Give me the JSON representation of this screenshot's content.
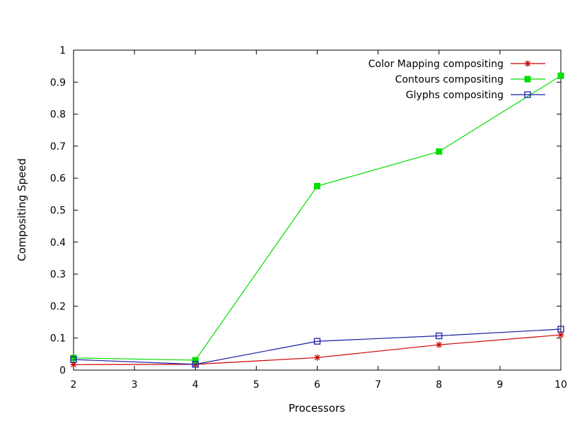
{
  "chart_data": {
    "type": "line",
    "title": "",
    "xlabel": "Processors",
    "ylabel": "Compositing Speed",
    "xlim": [
      2,
      10
    ],
    "ylim": [
      0,
      1
    ],
    "x_ticks": [
      2,
      3,
      4,
      5,
      6,
      7,
      8,
      9,
      10
    ],
    "y_ticks": [
      0,
      0.1,
      0.2,
      0.3,
      0.4,
      0.5,
      0.6,
      0.7,
      0.8,
      0.9,
      1
    ],
    "x_tick_labels": [
      "2",
      "3",
      "4",
      "5",
      "6",
      "7",
      "8",
      "9",
      "10"
    ],
    "y_tick_labels": [
      "0",
      "0.1",
      "0.2",
      "0.3",
      "0.4",
      "0.5",
      "0.6",
      "0.7",
      "0.8",
      "0.9",
      "1"
    ],
    "grid": false,
    "legend_position": "top-right",
    "series": [
      {
        "name": "Color Mapping compositing",
        "color": "#cc0000",
        "marker": "asterisk",
        "x": [
          2,
          4,
          6,
          8,
          10
        ],
        "values": [
          0.017,
          0.018,
          0.039,
          0.079,
          0.11
        ]
      },
      {
        "name": "Contours compositing",
        "color": "#00dd00",
        "marker": "filled-square",
        "x": [
          2,
          4,
          6,
          8,
          10
        ],
        "values": [
          0.038,
          0.031,
          0.575,
          0.683,
          0.92
        ]
      },
      {
        "name": "Glyphs compositing",
        "color": "#1a1aa6",
        "marker": "open-square",
        "x": [
          2,
          4,
          6,
          8,
          10
        ],
        "values": [
          0.033,
          0.018,
          0.09,
          0.107,
          0.128
        ]
      }
    ]
  }
}
